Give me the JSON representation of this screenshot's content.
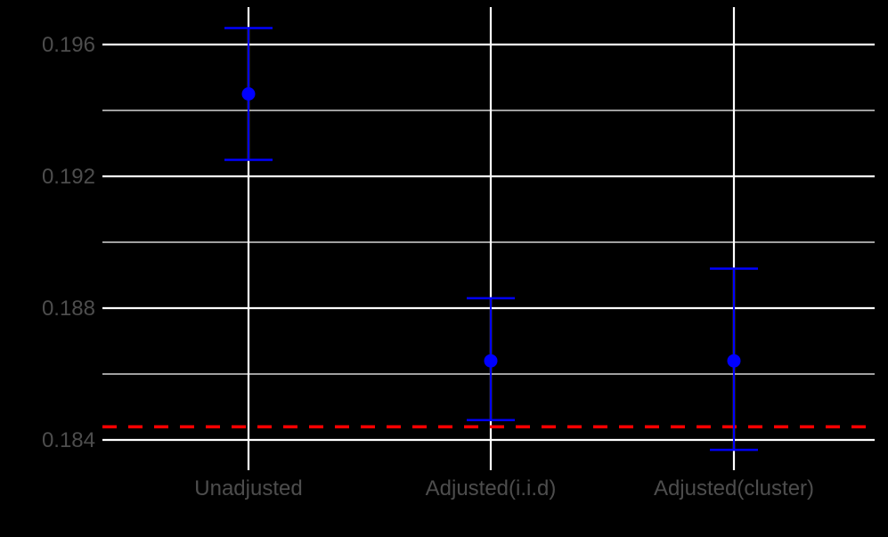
{
  "chart_data": {
    "type": "errorbar",
    "title": "",
    "xlabel": "",
    "ylabel": "",
    "categories": [
      "Unadjusted",
      "Adjusted(i.i.d)",
      "Adjusted(cluster)"
    ],
    "points": [
      {
        "category": "Unadjusted",
        "estimate": 0.1945,
        "lower": 0.1925,
        "upper": 0.1965
      },
      {
        "category": "Adjusted(i.i.d)",
        "estimate": 0.1864,
        "lower": 0.1846,
        "upper": 0.1883
      },
      {
        "category": "Adjusted(cluster)",
        "estimate": 0.1864,
        "lower": 0.1837,
        "upper": 0.1892
      }
    ],
    "reference_line": {
      "value": 0.1844,
      "style": "dashed",
      "color": "#ff0000"
    },
    "y_ticks": [
      "0.184",
      "0.188",
      "0.192",
      "0.196"
    ],
    "y_tick_values": [
      0.184,
      0.188,
      0.192,
      0.196
    ],
    "ylim": [
      0.1831,
      0.197
    ],
    "grid": true,
    "legend": null,
    "colors": {
      "background": "#000000",
      "grid": "#ffffff",
      "points": "#0000ff",
      "reference": "#ff0000",
      "tick_text": "#4d4d4d"
    }
  }
}
